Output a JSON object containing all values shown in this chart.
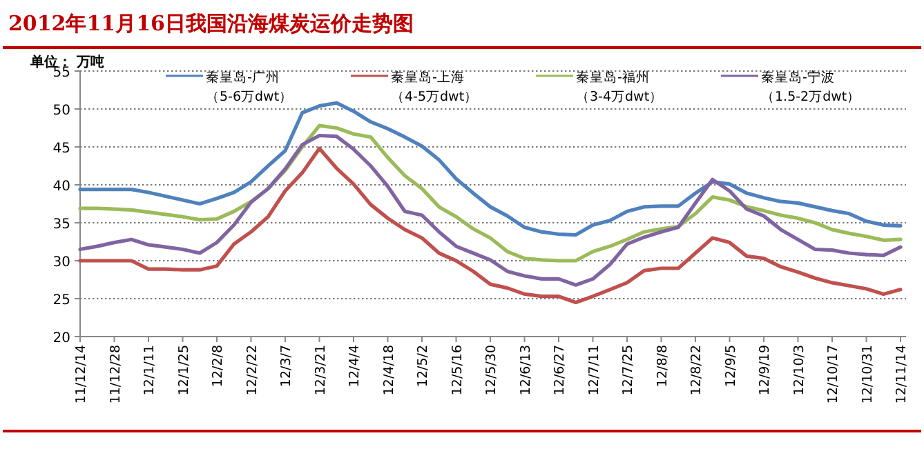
{
  "chart_data": {
    "type": "line",
    "title": "2012年11月16日我国沿海煤炭运价走势图",
    "ylabel": "单位： 万吨",
    "categories": [
      "11/12/14",
      null,
      "11/12/28",
      null,
      "12/1/11",
      null,
      "12/1/25",
      null,
      "12/2/8",
      null,
      "12/2/22",
      null,
      "12/3/7",
      null,
      "12/3/21",
      null,
      "12/4/4",
      null,
      "12/4/18",
      null,
      "12/5/2",
      null,
      "12/5/16",
      null,
      "12/5/30",
      null,
      "12/6/13",
      null,
      "12/6/27",
      null,
      "12/7/11",
      null,
      "12/7/25",
      null,
      "12/8/8",
      null,
      "12/8/22",
      null,
      "12/9/5",
      null,
      "12/9/19",
      null,
      "12/10/3",
      null,
      "12/10/17",
      null,
      "12/10/31",
      null,
      "12/11/14"
    ],
    "series": [
      {
        "name": "秦皇岛-广州（5-6万dwt）",
        "color": "#4f81bd",
        "values": [
          39.4,
          39.4,
          39.4,
          39.4,
          39.0,
          38.5,
          38.0,
          37.5,
          38.2,
          39.0,
          40.4,
          42.5,
          44.5,
          49.5,
          50.4,
          50.8,
          49.7,
          48.3,
          47.4,
          46.3,
          45.1,
          43.3,
          40.8,
          38.9,
          37.1,
          35.9,
          34.4,
          33.8,
          33.5,
          33.4,
          34.7,
          35.3,
          36.5,
          37.1,
          37.2,
          37.2,
          38.9,
          40.4,
          40.1,
          38.9,
          38.3,
          37.8,
          37.6,
          37.1,
          36.6,
          36.2,
          35.2,
          34.7,
          34.6
        ]
      },
      {
        "name": "秦皇岛-上海（4-5万dwt）",
        "color": "#c0504d",
        "values": [
          30.0,
          30.0,
          30.0,
          30.0,
          28.9,
          28.9,
          28.8,
          28.8,
          29.3,
          32.2,
          33.8,
          35.8,
          39.2,
          41.6,
          44.8,
          42.2,
          40.1,
          37.4,
          35.6,
          34.1,
          33.0,
          31.0,
          30.0,
          28.6,
          26.9,
          26.4,
          25.6,
          25.3,
          25.3,
          24.5,
          25.3,
          26.2,
          27.1,
          28.7,
          29.0,
          29.0,
          31.0,
          33.0,
          32.4,
          30.6,
          30.3,
          29.2,
          28.5,
          27.7,
          27.1,
          26.7,
          26.3,
          25.6,
          26.2
        ]
      },
      {
        "name": "秦皇岛-福州（3-4万dwt）",
        "color": "#9bbb59",
        "values": [
          36.9,
          36.9,
          36.8,
          36.7,
          36.4,
          36.1,
          35.8,
          35.4,
          35.5,
          36.5,
          37.8,
          39.5,
          41.9,
          45.0,
          47.8,
          47.5,
          46.7,
          46.3,
          43.6,
          41.2,
          39.5,
          37.1,
          35.8,
          34.2,
          33.0,
          31.2,
          30.3,
          30.1,
          30.0,
          30.0,
          31.2,
          31.9,
          32.8,
          33.8,
          34.2,
          34.5,
          36.2,
          38.4,
          38.0,
          37.1,
          36.6,
          36.0,
          35.6,
          35.0,
          34.1,
          33.6,
          33.2,
          32.7,
          32.8
        ]
      },
      {
        "name": "秦皇岛-宁波（1.5-2万dwt）",
        "color": "#8064a2",
        "values": [
          31.5,
          31.9,
          32.4,
          32.8,
          32.1,
          31.8,
          31.5,
          31.0,
          32.4,
          34.7,
          37.7,
          39.5,
          42.1,
          45.3,
          46.5,
          46.4,
          44.7,
          42.5,
          39.8,
          36.5,
          36.0,
          33.8,
          31.9,
          31.0,
          30.1,
          28.6,
          28.0,
          27.6,
          27.6,
          26.8,
          27.6,
          29.5,
          32.2,
          33.1,
          33.8,
          34.4,
          37.6,
          40.7,
          39.2,
          36.8,
          35.9,
          34.1,
          32.8,
          31.5,
          31.4,
          31.0,
          30.8,
          30.7,
          31.8
        ]
      }
    ],
    "ylim": [
      20,
      55
    ],
    "yticks": [
      20,
      25,
      30,
      35,
      40,
      45,
      50,
      55
    ],
    "grid": "y",
    "legend": "top",
    "marker": "none",
    "line_style": "solid"
  }
}
